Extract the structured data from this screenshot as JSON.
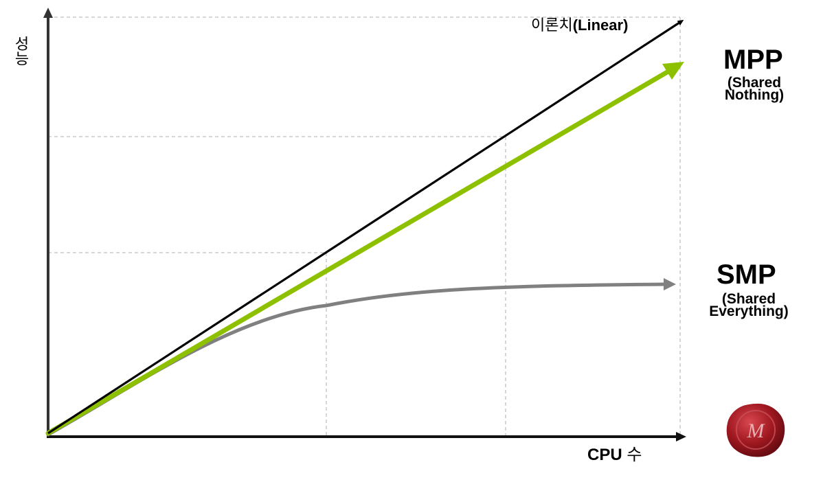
{
  "axes": {
    "y_label": "성능",
    "x_label_latin": "CPU ",
    "x_label_korean": "수"
  },
  "lines": {
    "linear": {
      "label_korean": "이론치",
      "label_english": "(Linear)",
      "color": "#000000"
    },
    "mpp": {
      "title": "MPP",
      "subtitle_line1": "(Shared",
      "subtitle_line2": "Nothing)",
      "color": "#8dc100"
    },
    "smp": {
      "title": "SMP",
      "subtitle_line1": "(Shared",
      "subtitle_line2": "Everything)",
      "color": "#808080"
    }
  },
  "colors": {
    "axis": "#333333",
    "guide": "#bfbfbf",
    "seal": "#a01820"
  },
  "logo": {
    "name": "wax-seal-logo",
    "monogram": "M"
  }
}
